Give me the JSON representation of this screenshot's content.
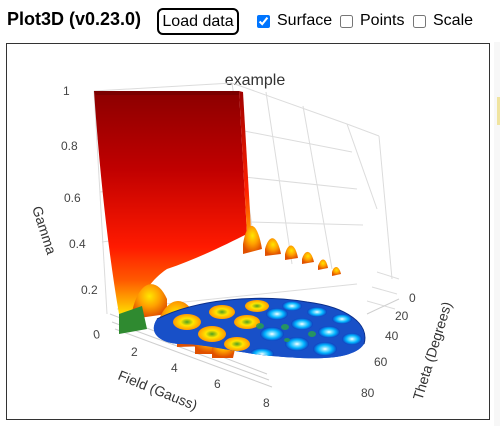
{
  "header": {
    "title": "Plot3D (v0.23.0)",
    "load_button": "Load data",
    "options": [
      {
        "label": "Surface",
        "checked": true
      },
      {
        "label": "Points",
        "checked": false
      },
      {
        "label": "Scale",
        "checked": false
      }
    ]
  },
  "chart_data": {
    "type": "surface3d",
    "title": "example",
    "xlabel": "Field (Gauss)",
    "ylabel": "Theta (Degrees)",
    "zlabel": "Gamma",
    "x_ticks": [
      "0",
      "2",
      "4",
      "6",
      "8"
    ],
    "y_ticks": [
      "0",
      "20",
      "40",
      "60",
      "80"
    ],
    "z_ticks": [
      "1",
      "0.8",
      "0.6",
      "0.4",
      "0.2"
    ],
    "xlim": [
      0,
      9
    ],
    "ylim": [
      0,
      90
    ],
    "zlim": [
      0,
      1
    ],
    "colorscale": [
      "#00008b",
      "#1e90ff",
      "#00bfff",
      "#20b060",
      "#ffe600",
      "#ff8c00",
      "#ff0000",
      "#8b0000"
    ]
  }
}
